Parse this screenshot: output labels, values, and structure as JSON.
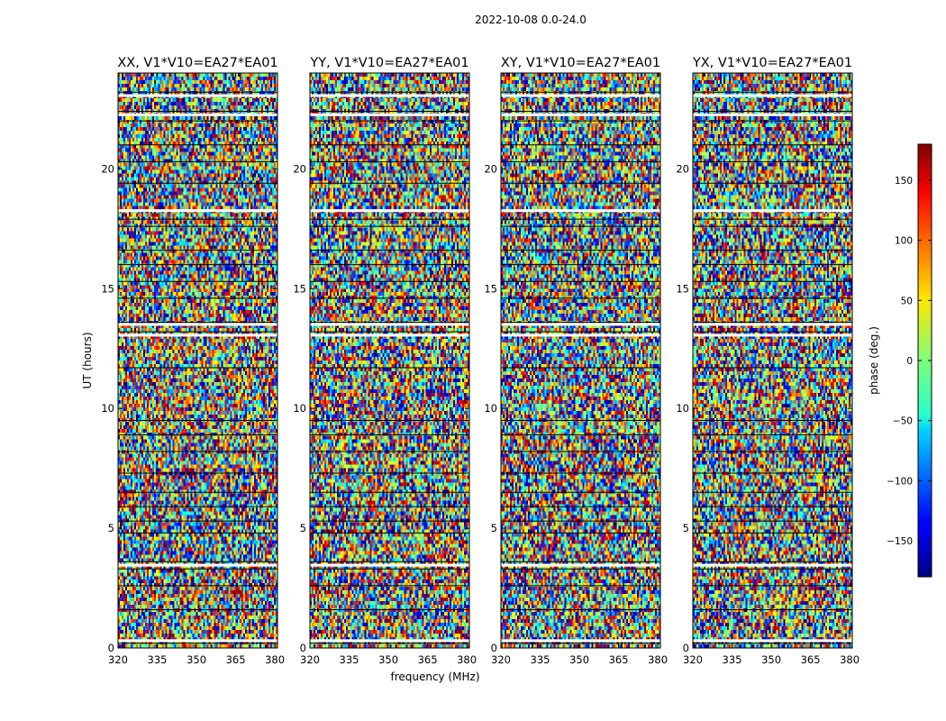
{
  "chart_data": {
    "type": "heatmap",
    "title": "2022-10-08 0.0-24.0",
    "xlabel": "frequency (MHz)",
    "ylabel": "UT (hours)",
    "colorbar_label": "phase (deg.)",
    "colormap": "jet",
    "xlim": [
      320,
      381
    ],
    "ylim": [
      0,
      24
    ],
    "xticks": [
      320,
      335,
      350,
      365,
      380
    ],
    "yticks": [
      0,
      5,
      10,
      15,
      20
    ],
    "clim": [
      -180,
      180
    ],
    "colorbar_ticks": [
      {
        "value": 150,
        "label": "150"
      },
      {
        "value": 100,
        "label": "100"
      },
      {
        "value": 50,
        "label": "50"
      },
      {
        "value": 0,
        "label": "0"
      },
      {
        "value": -50,
        "label": "−50"
      },
      {
        "value": -100,
        "label": "−100"
      },
      {
        "value": -150,
        "label": "−150"
      }
    ],
    "panels": [
      {
        "title": "XX, V1*V10=EA27*EA01"
      },
      {
        "title": "YY, V1*V10=EA27*EA01"
      },
      {
        "title": "XY, V1*V10=EA27*EA01"
      },
      {
        "title": "YX, V1*V10=EA27*EA01"
      }
    ]
  }
}
